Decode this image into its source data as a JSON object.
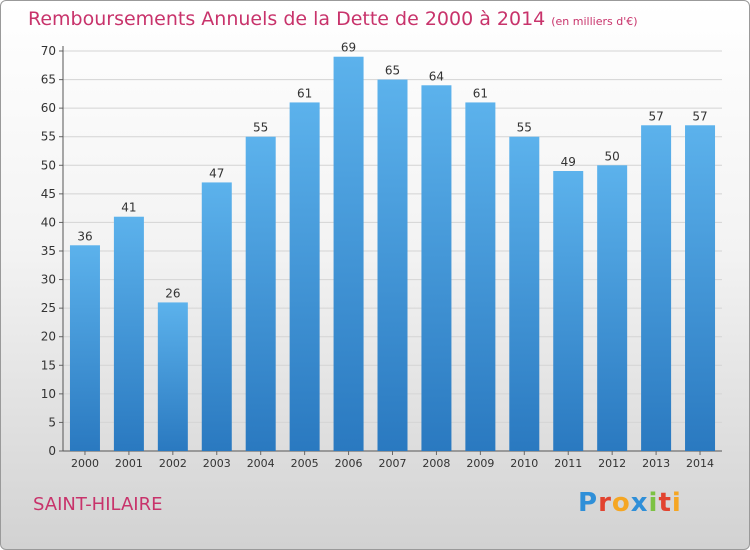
{
  "header": {
    "title": "Remboursements Annuels de la Dette de 2000 à 2014",
    "unit": "(en milliers d'€)"
  },
  "footer": {
    "commune": "SAINT-HILAIRE",
    "logo_text": "Proxiti",
    "logo_letters": [
      {
        "ch": "P",
        "color": "#2f8fd8"
      },
      {
        "ch": "r",
        "color": "#e2432f"
      },
      {
        "ch": "o",
        "color": "#f5a623"
      },
      {
        "ch": "x",
        "color": "#2f8fd8"
      },
      {
        "ch": "i",
        "color": "#7cc243"
      },
      {
        "ch": "t",
        "color": "#e2432f"
      },
      {
        "ch": "i",
        "color": "#f5a623"
      }
    ]
  },
  "chart_data": {
    "type": "bar",
    "title": "Remboursements Annuels de la Dette de 2000 à 2014",
    "subtitle": "(en milliers d'€)",
    "xlabel": "",
    "ylabel": "",
    "categories": [
      "2000",
      "2001",
      "2002",
      "2003",
      "2004",
      "2005",
      "2006",
      "2007",
      "2008",
      "2009",
      "2010",
      "2011",
      "2012",
      "2013",
      "2014"
    ],
    "values": [
      36,
      41,
      26,
      47,
      55,
      61,
      69,
      65,
      64,
      61,
      55,
      49,
      50,
      57,
      57
    ],
    "ylim": [
      0,
      70
    ],
    "yticks": [
      0,
      5,
      10,
      15,
      20,
      25,
      30,
      35,
      40,
      45,
      50,
      55,
      60,
      65,
      70
    ],
    "grid": true,
    "data_labels": true,
    "colors": {
      "bar_top": "#5cb2ec",
      "bar_bottom": "#2a79c0",
      "grid": "#d4d4d4",
      "accent": "#c8336b"
    }
  }
}
